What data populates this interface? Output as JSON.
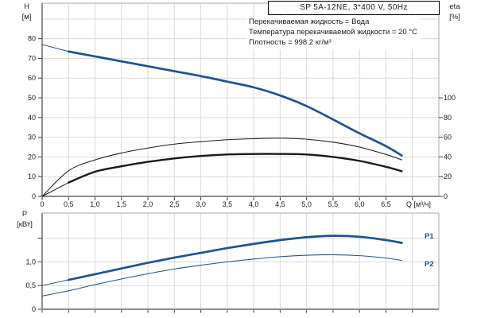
{
  "title_box": {
    "text": "SP 5A-12NE, 3*400 V, 50Hz"
  },
  "annotations": [
    "Перекачиваемая жидкость = Вода",
    "Температура перекачиваемой жидкости = 20 °C",
    "Плотность = 998.2 кг/м³"
  ],
  "axis_labels": {
    "h_top": "H",
    "h_unit": "[м]",
    "eta_top": "eta",
    "eta_unit": "[%]",
    "p_top": "P",
    "p_unit": "[кВт]",
    "q_unit": "Q [м³/ч]"
  },
  "series_labels": {
    "p1": "P1",
    "p2": "P2"
  },
  "colors": {
    "curve_blue": "#1f538c",
    "curve_black": "#1a1a1a",
    "grid": "#d9d9d9",
    "axis": "#7d7d7d",
    "frame": "#a9a9a9",
    "tick": "#3c3c3c",
    "label": "#1a1a1a"
  },
  "chart_data": [
    {
      "type": "line",
      "name": "head-efficiency-curve",
      "title": "SP 5A-12NE, 3*400 V, 50Hz",
      "xlabel": "Q [м³/ч]",
      "xlim": [
        0,
        7.5
      ],
      "grid": true,
      "x_tick_values": [
        0,
        0.5,
        1,
        1.5,
        2,
        2.5,
        3,
        3.5,
        4,
        4.5,
        5,
        5.5,
        6,
        6.5
      ],
      "x_tick_labels": [
        "0",
        "0,5",
        "1,0",
        "1,5",
        "2,0",
        "2,5",
        "3,0",
        "3,5",
        "4,0",
        "4,5",
        "5,0",
        "5,5",
        "6,0",
        "6,5"
      ],
      "x_grid_values": [
        0.5,
        1,
        1.5,
        2,
        2.5,
        3,
        3.5,
        4,
        4.5,
        5,
        5.5,
        6,
        6.5,
        7
      ],
      "ylabel_left": "H [м]",
      "ylim_left": [
        0,
        98
      ],
      "y_left_tick_values": [
        0,
        10,
        20,
        30,
        40,
        50,
        60,
        70,
        80
      ],
      "y_left_tick_labels": [
        "0",
        "10",
        "20",
        "30",
        "40",
        "50",
        "60",
        "70",
        "80"
      ],
      "y_left_grid_values": [
        10,
        20,
        30,
        40,
        50,
        60,
        70,
        80,
        90
      ],
      "ylabel_right": "eta [%]",
      "y_right_tick_values": [
        0,
        20,
        40,
        60,
        80,
        100
      ],
      "y_right_tick_labels": [
        "0",
        "20",
        "40",
        "60",
        "80",
        "100"
      ],
      "right_to_left_scale": 0.5,
      "series": [
        {
          "name": "H",
          "axis": "left",
          "color_key": "curve_blue",
          "thick": true,
          "thin_lead_points": 1,
          "points": [
            [
              0,
              77
            ],
            [
              0.5,
              73.5
            ],
            [
              1,
              71
            ],
            [
              1.5,
              68.5
            ],
            [
              2,
              66
            ],
            [
              2.5,
              63.5
            ],
            [
              3,
              61
            ],
            [
              3.5,
              58.2
            ],
            [
              4,
              55.3
            ],
            [
              4.5,
              51.2
            ],
            [
              5,
              45.8
            ],
            [
              5.5,
              39
            ],
            [
              6,
              32
            ],
            [
              6.5,
              25.5
            ],
            [
              6.8,
              20.7
            ]
          ]
        },
        {
          "name": "eta-pump",
          "axis": "right",
          "color_key": "curve_black",
          "thick": false,
          "thin_lead_points": 0,
          "points": [
            [
              0,
              0
            ],
            [
              0.5,
              26
            ],
            [
              1,
              37
            ],
            [
              1.5,
              44
            ],
            [
              2,
              49
            ],
            [
              2.5,
              53
            ],
            [
              3,
              55.5
            ],
            [
              3.5,
              57.5
            ],
            [
              4,
              58.5
            ],
            [
              4.5,
              59
            ],
            [
              5,
              58
            ],
            [
              5.5,
              55
            ],
            [
              6,
              50
            ],
            [
              6.5,
              42.5
            ],
            [
              6.8,
              37
            ]
          ]
        },
        {
          "name": "eta-pump-motor",
          "axis": "right",
          "color_key": "curve_black",
          "thick": true,
          "thin_lead_points": 1,
          "points": [
            [
              0,
              0
            ],
            [
              0.5,
              14
            ],
            [
              1,
              25
            ],
            [
              1.5,
              30.5
            ],
            [
              2,
              35
            ],
            [
              2.5,
              38.5
            ],
            [
              3,
              41
            ],
            [
              3.5,
              42.5
            ],
            [
              4,
              43
            ],
            [
              4.5,
              43
            ],
            [
              5,
              42.5
            ],
            [
              5.5,
              40
            ],
            [
              6,
              36
            ],
            [
              6.5,
              30
            ],
            [
              6.8,
              25.5
            ]
          ]
        }
      ]
    },
    {
      "type": "line",
      "name": "power-curve",
      "xlabel": "",
      "xlim": [
        0,
        7.5
      ],
      "grid": true,
      "x_grid_values": [
        0.5,
        1,
        1.5,
        2,
        2.5,
        3,
        3.5,
        4,
        4.5,
        5,
        5.5,
        6,
        6.5,
        7
      ],
      "ylabel": "P [кВт]",
      "ylim": [
        0,
        2.03
      ],
      "y_tick_values": [
        0,
        0.5,
        1
      ],
      "y_tick_labels": [
        "0",
        "0,5",
        "1,0"
      ],
      "y_extra_tick_values": [
        1.5
      ],
      "y_grid_values": [
        0.5,
        1,
        1.5
      ],
      "series": [
        {
          "name": "P1",
          "color_key": "curve_blue",
          "thick": true,
          "thin_lead_points": 1,
          "points": [
            [
              0,
              0.5
            ],
            [
              0.5,
              0.62
            ],
            [
              1,
              0.74
            ],
            [
              1.5,
              0.86
            ],
            [
              2,
              0.98
            ],
            [
              2.5,
              1.09
            ],
            [
              3,
              1.19
            ],
            [
              3.5,
              1.29
            ],
            [
              4,
              1.38
            ],
            [
              4.5,
              1.46
            ],
            [
              5,
              1.52
            ],
            [
              5.5,
              1.55
            ],
            [
              6,
              1.53
            ],
            [
              6.5,
              1.46
            ],
            [
              6.8,
              1.4
            ]
          ]
        },
        {
          "name": "P2",
          "color_key": "curve_blue",
          "thick": false,
          "thin_lead_points": 0,
          "points": [
            [
              0,
              0.28
            ],
            [
              0.5,
              0.39
            ],
            [
              1,
              0.52
            ],
            [
              1.5,
              0.64
            ],
            [
              2,
              0.75
            ],
            [
              2.5,
              0.85
            ],
            [
              3,
              0.93
            ],
            [
              3.5,
              1
            ],
            [
              4,
              1.06
            ],
            [
              4.5,
              1.11
            ],
            [
              5,
              1.14
            ],
            [
              5.5,
              1.15
            ],
            [
              6,
              1.13
            ],
            [
              6.5,
              1.08
            ],
            [
              6.8,
              1.03
            ]
          ]
        }
      ]
    }
  ]
}
